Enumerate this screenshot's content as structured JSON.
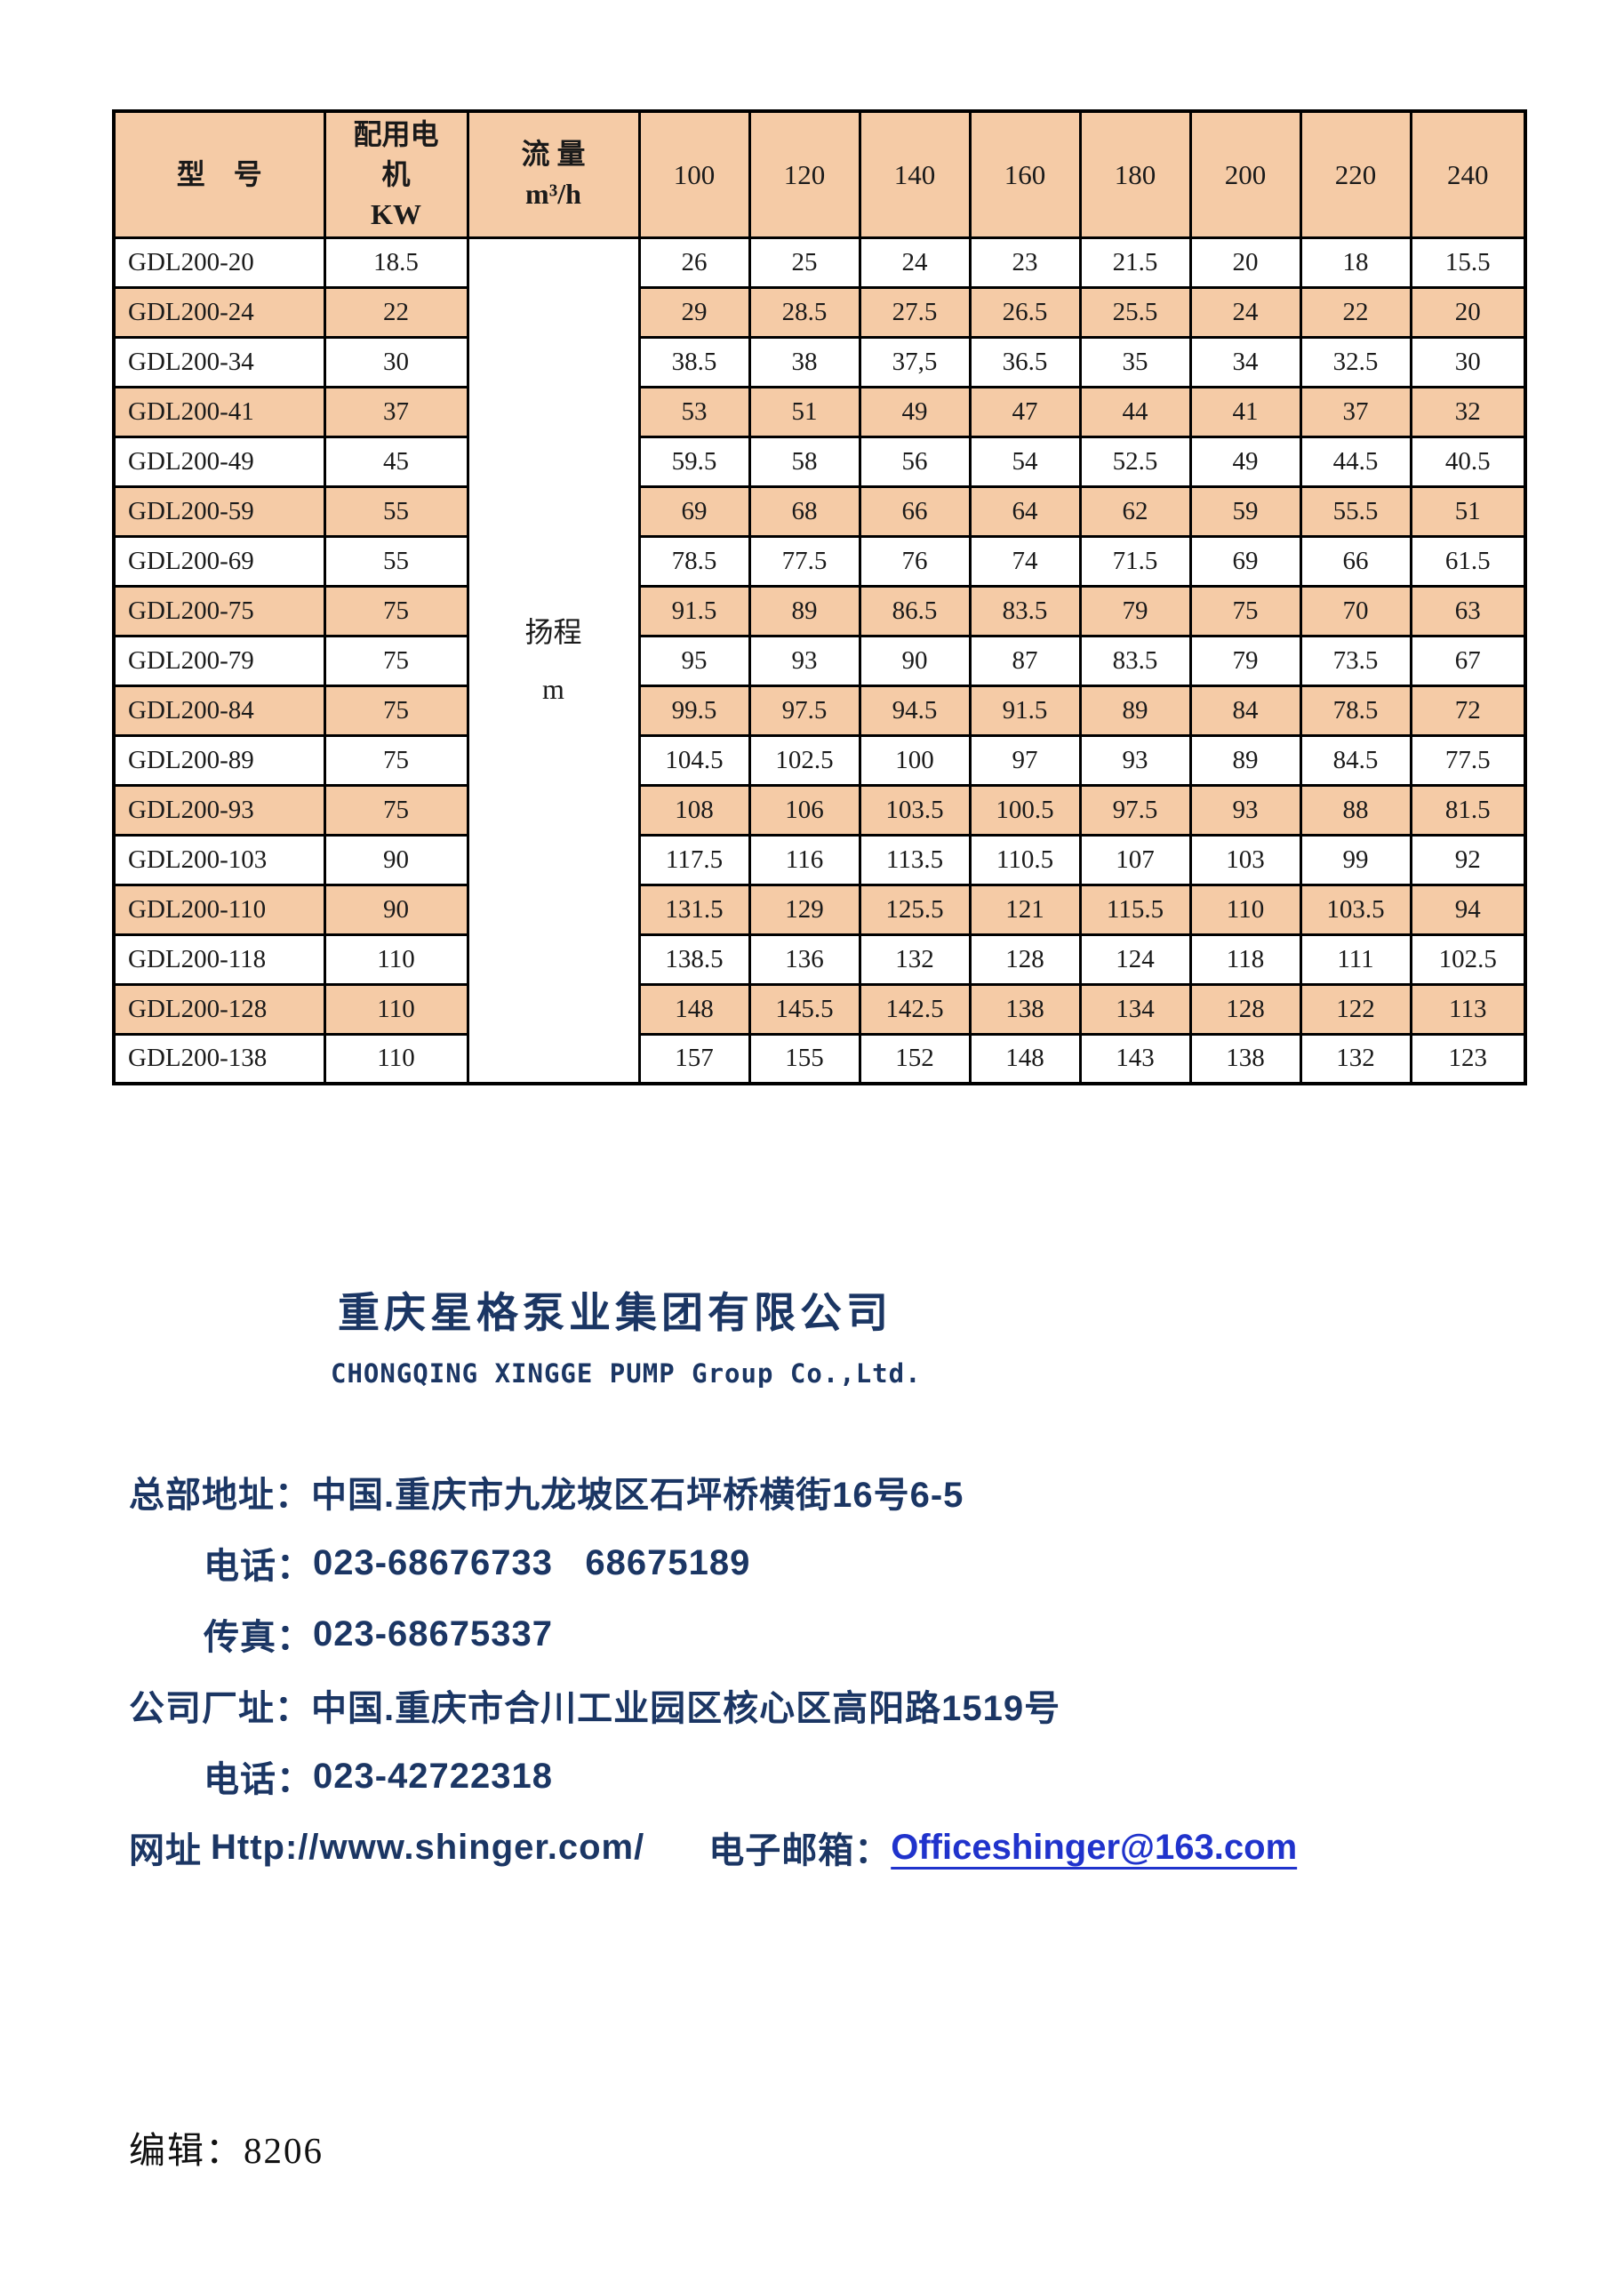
{
  "colors": {
    "row_shade_peach": "#f5cba6",
    "navy_text": "#1b3664",
    "link_blue": "#2033cc",
    "table_border": "#000000"
  },
  "table": {
    "header": {
      "model": "型　号",
      "motor": "配用电\n机\nKW",
      "flow": "流 量\nm³/h",
      "flow_values": [
        "100",
        "120",
        "140",
        "160",
        "180",
        "200",
        "220",
        "240"
      ]
    },
    "head_unit_label": "扬程\nm",
    "rows": [
      {
        "model": "GDL200-20",
        "kw": "18.5",
        "shaded": false,
        "values": [
          "26",
          "25",
          "24",
          "23",
          "21.5",
          "20",
          "18",
          "15.5"
        ]
      },
      {
        "model": "GDL200-24",
        "kw": "22",
        "shaded": true,
        "values": [
          "29",
          "28.5",
          "27.5",
          "26.5",
          "25.5",
          "24",
          "22",
          "20"
        ]
      },
      {
        "model": "GDL200-34",
        "kw": "30",
        "shaded": false,
        "values": [
          "38.5",
          "38",
          "37,5",
          "36.5",
          "35",
          "34",
          "32.5",
          "30"
        ]
      },
      {
        "model": "GDL200-41",
        "kw": "37",
        "shaded": true,
        "values": [
          "53",
          "51",
          "49",
          "47",
          "44",
          "41",
          "37",
          "32"
        ]
      },
      {
        "model": "GDL200-49",
        "kw": "45",
        "shaded": false,
        "values": [
          "59.5",
          "58",
          "56",
          "54",
          "52.5",
          "49",
          "44.5",
          "40.5"
        ]
      },
      {
        "model": "GDL200-59",
        "kw": "55",
        "shaded": true,
        "values": [
          "69",
          "68",
          "66",
          "64",
          "62",
          "59",
          "55.5",
          "51"
        ]
      },
      {
        "model": "GDL200-69",
        "kw": "55",
        "shaded": false,
        "values": [
          "78.5",
          "77.5",
          "76",
          "74",
          "71.5",
          "69",
          "66",
          "61.5"
        ]
      },
      {
        "model": "GDL200-75",
        "kw": "75",
        "shaded": true,
        "values": [
          "91.5",
          "89",
          "86.5",
          "83.5",
          "79",
          "75",
          "70",
          "63"
        ]
      },
      {
        "model": "GDL200-79",
        "kw": "75",
        "shaded": false,
        "values": [
          "95",
          "93",
          "90",
          "87",
          "83.5",
          "79",
          "73.5",
          "67"
        ]
      },
      {
        "model": "GDL200-84",
        "kw": "75",
        "shaded": true,
        "values": [
          "99.5",
          "97.5",
          "94.5",
          "91.5",
          "89",
          "84",
          "78.5",
          "72"
        ]
      },
      {
        "model": "GDL200-89",
        "kw": "75",
        "shaded": false,
        "values": [
          "104.5",
          "102.5",
          "100",
          "97",
          "93",
          "89",
          "84.5",
          "77.5"
        ]
      },
      {
        "model": "GDL200-93",
        "kw": "75",
        "shaded": true,
        "values": [
          "108",
          "106",
          "103.5",
          "100.5",
          "97.5",
          "93",
          "88",
          "81.5"
        ]
      },
      {
        "model": "GDL200-103",
        "kw": "90",
        "shaded": false,
        "values": [
          "117.5",
          "116",
          "113.5",
          "110.5",
          "107",
          "103",
          "99",
          "92"
        ]
      },
      {
        "model": "GDL200-110",
        "kw": "90",
        "shaded": true,
        "values": [
          "131.5",
          "129",
          "125.5",
          "121",
          "115.5",
          "110",
          "103.5",
          "94"
        ]
      },
      {
        "model": "GDL200-118",
        "kw": "110",
        "shaded": false,
        "values": [
          "138.5",
          "136",
          "132",
          "128",
          "124",
          "118",
          "111",
          "102.5"
        ]
      },
      {
        "model": "GDL200-128",
        "kw": "110",
        "shaded": true,
        "values": [
          "148",
          "145.5",
          "142.5",
          "138",
          "134",
          "128",
          "122",
          "113"
        ]
      },
      {
        "model": "GDL200-138",
        "kw": "110",
        "shaded": false,
        "values": [
          "157",
          "155",
          "152",
          "148",
          "143",
          "138",
          "132",
          "123"
        ]
      }
    ]
  },
  "company": {
    "name_cn": "重庆星格泵业集团有限公司",
    "name_en": "CHONGQING XINGGE PUMP Group Co.,Ltd."
  },
  "contact": {
    "lines": [
      {
        "label": "总部地址：",
        "value": "中国.重庆市九龙坡区石坪桥横街16号6-5",
        "indent": false
      },
      {
        "label": "电话：",
        "value": "023-68676733   68675189",
        "indent": true
      },
      {
        "label": "传真：",
        "value": "023-68675337",
        "indent": true
      },
      {
        "label": "公司厂址：",
        "value": "中国.重庆市合川工业园区核心区高阳路1519号",
        "indent": false
      },
      {
        "label": "电话：",
        "value": "023-42722318",
        "indent": true
      }
    ],
    "web_label": "网址",
    "web_url": "Http://www.shinger.com/",
    "email_label": "电子邮箱：",
    "email_address": "Officeshinger@163.com"
  },
  "footer": {
    "editor": "编辑：8206"
  }
}
